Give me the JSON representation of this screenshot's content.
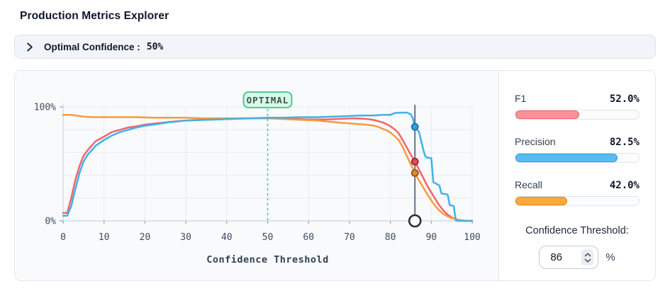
{
  "title": "Production Metrics Explorer",
  "header": {
    "label": "Optimal Confidence :",
    "value": "50%"
  },
  "metrics": [
    {
      "label": "F1",
      "value": "52.0%",
      "pct": 52,
      "fill": "#f8929a",
      "stroke": "#ee666e"
    },
    {
      "label": "Precision",
      "value": "82.5%",
      "pct": 82.5,
      "fill": "#55bdf2",
      "stroke": "#2b9ddd"
    },
    {
      "label": "Recall",
      "value": "42.0%",
      "pct": 42,
      "fill": "#f9a93f",
      "stroke": "#e0871c"
    }
  ],
  "threshold": {
    "label": "Confidence Threshold:",
    "value": "86",
    "unit": "%"
  },
  "chart_data": {
    "type": "line",
    "xlabel": "Confidence Threshold",
    "ylabel": "",
    "xlim": [
      0,
      100
    ],
    "ylim": [
      0,
      100
    ],
    "grid": true,
    "x_ticks": [
      0,
      10,
      20,
      30,
      40,
      50,
      60,
      70,
      80,
      90,
      100
    ],
    "y_ticks": [
      {
        "v": 0,
        "label": "0%"
      },
      {
        "v": 100,
        "label": "100%"
      }
    ],
    "optimal": {
      "x": 50,
      "label": "OPTIMAL",
      "line_color": "#4ec79b",
      "badge_bg": "#d9f8e6",
      "badge_border": "#3fc48e"
    },
    "marker": {
      "x": 86,
      "line_color": "#64748b",
      "dots": [
        {
          "series": "Precision",
          "y": 82.5,
          "fill": "#2ea3e6",
          "stroke": "#1c6fa6"
        },
        {
          "series": "F1",
          "y": 52,
          "fill": "#ea4a52",
          "stroke": "#9c2228"
        },
        {
          "series": "Recall",
          "y": 42,
          "fill": "#e78a1f",
          "stroke": "#95521a"
        }
      ]
    },
    "series": [
      {
        "name": "F1",
        "color": "#f4636c",
        "points": [
          [
            0,
            7
          ],
          [
            1,
            7
          ],
          [
            2,
            20
          ],
          [
            3,
            36
          ],
          [
            4,
            48
          ],
          [
            5,
            57
          ],
          [
            6,
            62
          ],
          [
            7,
            66
          ],
          [
            8,
            70
          ],
          [
            10,
            74
          ],
          [
            12,
            78
          ],
          [
            14,
            80
          ],
          [
            16,
            82
          ],
          [
            18,
            83
          ],
          [
            20,
            84.5
          ],
          [
            24,
            86
          ],
          [
            28,
            87.5
          ],
          [
            32,
            88.5
          ],
          [
            36,
            89
          ],
          [
            40,
            89.5
          ],
          [
            44,
            90
          ],
          [
            48,
            90
          ],
          [
            52,
            90
          ],
          [
            56,
            89.5
          ],
          [
            60,
            89
          ],
          [
            64,
            89
          ],
          [
            68,
            89.5
          ],
          [
            71,
            90
          ],
          [
            74,
            89.5
          ],
          [
            76,
            88.5
          ],
          [
            78,
            86.5
          ],
          [
            79,
            85
          ],
          [
            80,
            83
          ],
          [
            81,
            80.5
          ],
          [
            82,
            77
          ],
          [
            83,
            71
          ],
          [
            84,
            64.5
          ],
          [
            85,
            58
          ],
          [
            86,
            52
          ],
          [
            87,
            45
          ],
          [
            88,
            38
          ],
          [
            89,
            31
          ],
          [
            90,
            25
          ],
          [
            91,
            19
          ],
          [
            92,
            13.5
          ],
          [
            93,
            9
          ],
          [
            94,
            5.5
          ],
          [
            95,
            3
          ],
          [
            96,
            1.5
          ],
          [
            97,
            0.5
          ],
          [
            98,
            0
          ],
          [
            100,
            0
          ]
        ]
      },
      {
        "name": "Recall",
        "color": "#f79a3c",
        "points": [
          [
            0,
            93
          ],
          [
            2,
            93
          ],
          [
            3,
            92.5
          ],
          [
            5,
            91.5
          ],
          [
            7,
            91
          ],
          [
            10,
            91
          ],
          [
            14,
            91
          ],
          [
            18,
            91
          ],
          [
            22,
            90.5
          ],
          [
            26,
            90.5
          ],
          [
            30,
            90.5
          ],
          [
            34,
            90
          ],
          [
            38,
            90
          ],
          [
            42,
            90
          ],
          [
            46,
            90
          ],
          [
            50,
            90
          ],
          [
            53,
            89.5
          ],
          [
            56,
            89
          ],
          [
            59,
            88.5
          ],
          [
            62,
            88
          ],
          [
            65,
            87
          ],
          [
            68,
            86
          ],
          [
            70,
            85.5
          ],
          [
            72,
            85
          ],
          [
            74,
            84.5
          ],
          [
            76,
            83.5
          ],
          [
            77,
            82.5
          ],
          [
            78,
            81
          ],
          [
            79,
            79.5
          ],
          [
            80,
            77.5
          ],
          [
            81,
            74.5
          ],
          [
            82,
            71
          ],
          [
            83,
            65
          ],
          [
            84,
            57
          ],
          [
            85,
            49.5
          ],
          [
            86,
            42
          ],
          [
            87,
            35.5
          ],
          [
            88,
            29.5
          ],
          [
            89,
            23.5
          ],
          [
            90,
            18
          ],
          [
            91,
            13
          ],
          [
            92,
            9
          ],
          [
            93,
            6
          ],
          [
            94,
            4
          ],
          [
            95,
            2.5
          ],
          [
            96,
            1.5
          ],
          [
            97,
            0.8
          ],
          [
            98,
            0.3
          ],
          [
            100,
            0
          ]
        ]
      },
      {
        "name": "Precision",
        "color": "#41b1e8",
        "points": [
          [
            0,
            4.5
          ],
          [
            1,
            4.5
          ],
          [
            2,
            13
          ],
          [
            3,
            28
          ],
          [
            4,
            42
          ],
          [
            5,
            52
          ],
          [
            6,
            58
          ],
          [
            7,
            62
          ],
          [
            8,
            66
          ],
          [
            10,
            71
          ],
          [
            12,
            75
          ],
          [
            14,
            78
          ],
          [
            16,
            80
          ],
          [
            18,
            82
          ],
          [
            20,
            83.5
          ],
          [
            23,
            85
          ],
          [
            26,
            86.5
          ],
          [
            30,
            88
          ],
          [
            34,
            88.5
          ],
          [
            38,
            89
          ],
          [
            42,
            89.5
          ],
          [
            46,
            90
          ],
          [
            50,
            90.5
          ],
          [
            54,
            90.5
          ],
          [
            58,
            91
          ],
          [
            62,
            91
          ],
          [
            66,
            91.5
          ],
          [
            70,
            92
          ],
          [
            73,
            92.5
          ],
          [
            76,
            92.5
          ],
          [
            78,
            93
          ],
          [
            80,
            93
          ],
          [
            81,
            94.5
          ],
          [
            82,
            95
          ],
          [
            84,
            95
          ],
          [
            85,
            93.5
          ],
          [
            85.5,
            90
          ],
          [
            86,
            82.5
          ],
          [
            86.5,
            80
          ],
          [
            87,
            78
          ],
          [
            88,
            63
          ],
          [
            88.5,
            57
          ],
          [
            89,
            55.5
          ],
          [
            90,
            55
          ],
          [
            90.5,
            34
          ],
          [
            91.5,
            32
          ],
          [
            92,
            31
          ],
          [
            92.5,
            24
          ],
          [
            93.5,
            23.5
          ],
          [
            94,
            23
          ],
          [
            94.5,
            14
          ],
          [
            95,
            13.5
          ],
          [
            95.5,
            13
          ],
          [
            96,
            0.5
          ],
          [
            96.5,
            0
          ],
          [
            100,
            0
          ]
        ]
      }
    ]
  }
}
